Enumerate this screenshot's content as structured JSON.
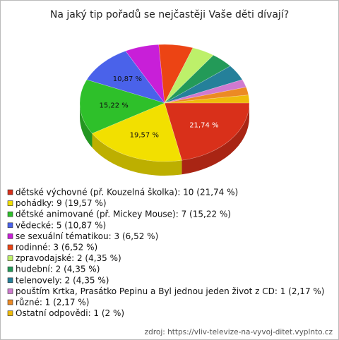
{
  "chart_data": {
    "type": "pie",
    "title": "Na jaký tip pořadů se nejčastěji Vaše děti dívají?",
    "categories": [
      "dětské výchovné (př. Kouzelná školka): 10 (21,74 %)",
      "pohádky: 9 (19,57 %)",
      "dětské animované (př. Mickey Mouse): 7 (15,22 %)",
      "vědecké: 5 (10,87 %)",
      "se sexuální tématikou: 3 (6,52 %)",
      "rodinné: 3 (6,52 %)",
      "zpravodajské: 2 (4,35 %)",
      "hudební: 2 (4,35 %)",
      "telenovely: 2 (4,35 %)",
      "pouštím Krtka, Prasátko Pepinu a Byl jednou jeden život z CD: 1 (2,17 %)",
      "různé: 1 (2,17 %)",
      "Ostatní odpovědi: 1 (2 %)"
    ],
    "values": [
      10,
      9,
      7,
      5,
      3,
      3,
      2,
      2,
      2,
      1,
      1,
      1
    ],
    "value_labels": [
      "21,74 %",
      "19,57 %",
      "15,22 %",
      "10,87 %",
      null,
      null,
      null,
      null,
      null,
      null,
      null,
      null
    ],
    "colors": [
      "#d9301a",
      "#f2e000",
      "#2ec02a",
      "#4a62ea",
      "#c81fd8",
      "#ec4414",
      "#bdf06a",
      "#239a58",
      "#25809a",
      "#d07ad0",
      "#ec8a24",
      "#efbb0a"
    ],
    "source": "zdroj: https://vliv-televize-na-vyvoj-ditet.vyplnto.cz"
  }
}
